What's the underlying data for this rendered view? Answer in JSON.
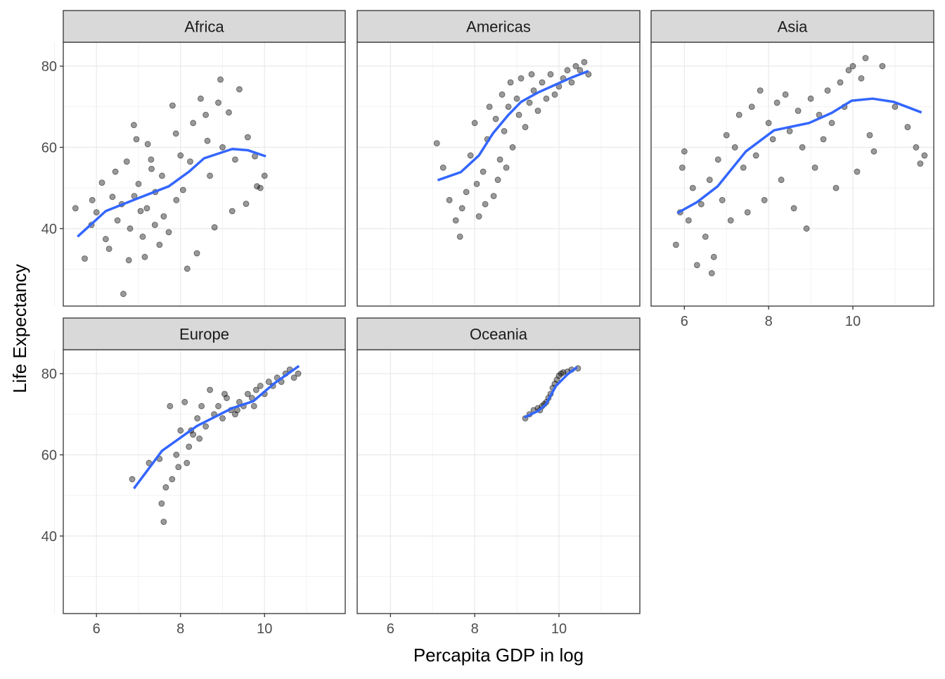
{
  "chart_data": {
    "type": "scatter",
    "xlabel": "Percapita GDP in log",
    "ylabel": "Life Expectancy",
    "xlim": [
      5.21,
      11.92
    ],
    "ylim": [
      20.9,
      85.9
    ],
    "x_ticks": [
      "6",
      "8",
      "10"
    ],
    "y_ticks": [
      "40",
      "60",
      "80"
    ],
    "grid": true,
    "point_color": "#000000",
    "smooth_color": "#3366FF",
    "facets": [
      {
        "name": "Africa",
        "points": [
          [
            5.5,
            45
          ],
          [
            5.72,
            32.6
          ],
          [
            6.22,
            37.4
          ],
          [
            6.64,
            23.9
          ],
          [
            6.77,
            32.2
          ],
          [
            6.89,
            65.5
          ],
          [
            7.22,
            60.8
          ],
          [
            7.56,
            53
          ],
          [
            7.89,
            63.4
          ],
          [
            8.16,
            30.1
          ],
          [
            8.48,
            72
          ],
          [
            8.95,
            76.7
          ],
          [
            9.4,
            74.3
          ],
          [
            9.77,
            57.8
          ],
          [
            10,
            53
          ],
          [
            9.82,
            50.4
          ],
          [
            8.81,
            40.3
          ],
          [
            7.72,
            39.1
          ],
          [
            6.38,
            47.8
          ],
          [
            7.05,
            44.3
          ],
          [
            5.88,
            40.9
          ],
          [
            7.31,
            54.7
          ],
          [
            8.06,
            49.5
          ],
          [
            8.64,
            61.6
          ],
          [
            9.15,
            68.6
          ],
          [
            9.6,
            62.5
          ],
          [
            8.39,
            33.9
          ],
          [
            6.72,
            56.5
          ],
          [
            6.13,
            51.3
          ],
          [
            7.39,
            40.9
          ],
          [
            7.81,
            70.3
          ],
          [
            8.23,
            56.5
          ],
          [
            9.23,
            44.3
          ],
          [
            9.56,
            46.1
          ],
          [
            6.5,
            42
          ],
          [
            6.6,
            46
          ],
          [
            6.9,
            48
          ],
          [
            7.0,
            51
          ],
          [
            7.1,
            38
          ],
          [
            7.2,
            45
          ],
          [
            7.4,
            49
          ],
          [
            7.5,
            36
          ],
          [
            6.3,
            35
          ],
          [
            6.0,
            44
          ],
          [
            5.9,
            47
          ],
          [
            6.8,
            40
          ],
          [
            7.3,
            57
          ],
          [
            7.6,
            43
          ],
          [
            7.9,
            47
          ],
          [
            8.0,
            58
          ],
          [
            8.3,
            66
          ],
          [
            8.6,
            68
          ],
          [
            8.7,
            53
          ],
          [
            9.0,
            60
          ],
          [
            9.3,
            57
          ],
          [
            9.9,
            50
          ],
          [
            6.95,
            62
          ],
          [
            7.15,
            33
          ],
          [
            6.45,
            54
          ],
          [
            8.9,
            71
          ]
        ]
      },
      {
        "name": "Americas",
        "points": [
          [
            7.1,
            61
          ],
          [
            7.25,
            55
          ],
          [
            7.4,
            47
          ],
          [
            7.55,
            42
          ],
          [
            7.65,
            38
          ],
          [
            7.8,
            49
          ],
          [
            7.9,
            58
          ],
          [
            8.0,
            66
          ],
          [
            8.1,
            43
          ],
          [
            8.2,
            54
          ],
          [
            8.3,
            62
          ],
          [
            8.35,
            70
          ],
          [
            8.45,
            48
          ],
          [
            8.5,
            67
          ],
          [
            8.6,
            57
          ],
          [
            8.65,
            73
          ],
          [
            8.7,
            64
          ],
          [
            8.8,
            70
          ],
          [
            8.85,
            76
          ],
          [
            8.9,
            60
          ],
          [
            9.0,
            72
          ],
          [
            9.05,
            68
          ],
          [
            9.1,
            77
          ],
          [
            9.2,
            65
          ],
          [
            9.3,
            71
          ],
          [
            9.35,
            78
          ],
          [
            9.4,
            74
          ],
          [
            9.5,
            69
          ],
          [
            9.6,
            76
          ],
          [
            9.7,
            72
          ],
          [
            9.8,
            78
          ],
          [
            9.9,
            73
          ],
          [
            10.0,
            75
          ],
          [
            10.1,
            77
          ],
          [
            10.2,
            79
          ],
          [
            10.3,
            76
          ],
          [
            10.4,
            80
          ],
          [
            10.5,
            79
          ],
          [
            10.6,
            81
          ],
          [
            10.7,
            78
          ],
          [
            8.05,
            51
          ],
          [
            8.25,
            46
          ],
          [
            8.55,
            52
          ],
          [
            7.7,
            45
          ],
          [
            8.75,
            55
          ]
        ]
      },
      {
        "name": "Asia",
        "points": [
          [
            5.8,
            36
          ],
          [
            5.9,
            44
          ],
          [
            5.95,
            55
          ],
          [
            6.0,
            59
          ],
          [
            6.1,
            42
          ],
          [
            6.2,
            50
          ],
          [
            6.3,
            31
          ],
          [
            6.4,
            46
          ],
          [
            6.5,
            38
          ],
          [
            6.6,
            52
          ],
          [
            6.65,
            29
          ],
          [
            6.7,
            33
          ],
          [
            6.8,
            57
          ],
          [
            6.9,
            47
          ],
          [
            7.0,
            63
          ],
          [
            7.1,
            42
          ],
          [
            7.2,
            60
          ],
          [
            7.3,
            68
          ],
          [
            7.4,
            55
          ],
          [
            7.5,
            44
          ],
          [
            7.6,
            70
          ],
          [
            7.7,
            58
          ],
          [
            7.8,
            74
          ],
          [
            7.9,
            47
          ],
          [
            8.0,
            66
          ],
          [
            8.1,
            62
          ],
          [
            8.2,
            71
          ],
          [
            8.3,
            52
          ],
          [
            8.4,
            73
          ],
          [
            8.5,
            64
          ],
          [
            8.6,
            45
          ],
          [
            8.7,
            69
          ],
          [
            8.8,
            60
          ],
          [
            8.9,
            40
          ],
          [
            9.0,
            72
          ],
          [
            9.1,
            55
          ],
          [
            9.2,
            68
          ],
          [
            9.3,
            62
          ],
          [
            9.4,
            74
          ],
          [
            9.5,
            66
          ],
          [
            9.6,
            50
          ],
          [
            9.7,
            76
          ],
          [
            9.8,
            70
          ],
          [
            9.9,
            79
          ],
          [
            10.0,
            80
          ],
          [
            10.1,
            54
          ],
          [
            10.2,
            77
          ],
          [
            10.3,
            82
          ],
          [
            10.4,
            63
          ],
          [
            10.5,
            59
          ],
          [
            10.7,
            80
          ],
          [
            11.0,
            70
          ],
          [
            11.3,
            65
          ],
          [
            11.5,
            60
          ],
          [
            11.6,
            56
          ],
          [
            11.7,
            58
          ]
        ]
      },
      {
        "name": "Europe",
        "points": [
          [
            6.85,
            54
          ],
          [
            7.25,
            58
          ],
          [
            7.5,
            59
          ],
          [
            7.55,
            48
          ],
          [
            7.6,
            43.5
          ],
          [
            7.65,
            52
          ],
          [
            7.75,
            72
          ],
          [
            7.8,
            54
          ],
          [
            7.9,
            60
          ],
          [
            8.0,
            66
          ],
          [
            8.1,
            73
          ],
          [
            8.2,
            62
          ],
          [
            8.3,
            65
          ],
          [
            8.4,
            69
          ],
          [
            8.5,
            72
          ],
          [
            8.6,
            67
          ],
          [
            8.7,
            76
          ],
          [
            8.8,
            70
          ],
          [
            8.9,
            72
          ],
          [
            9.0,
            69
          ],
          [
            9.1,
            74
          ],
          [
            9.2,
            71
          ],
          [
            9.3,
            70
          ],
          [
            9.4,
            73
          ],
          [
            9.5,
            72
          ],
          [
            9.6,
            75
          ],
          [
            9.7,
            74
          ],
          [
            9.8,
            76
          ],
          [
            9.9,
            77
          ],
          [
            10.0,
            75
          ],
          [
            10.1,
            78
          ],
          [
            10.2,
            77
          ],
          [
            10.3,
            79
          ],
          [
            10.4,
            78
          ],
          [
            10.5,
            80
          ],
          [
            10.6,
            81
          ],
          [
            10.7,
            79
          ],
          [
            10.8,
            80
          ],
          [
            8.25,
            66
          ],
          [
            8.45,
            64
          ],
          [
            8.15,
            58
          ],
          [
            7.95,
            57
          ],
          [
            9.05,
            75
          ],
          [
            9.35,
            71
          ],
          [
            9.75,
            72
          ]
        ]
      },
      {
        "name": "Oceania",
        "points": [
          [
            9.2,
            69
          ],
          [
            9.3,
            70
          ],
          [
            9.4,
            71
          ],
          [
            9.5,
            71.5
          ],
          [
            9.6,
            72
          ],
          [
            9.65,
            72.5
          ],
          [
            9.75,
            74
          ],
          [
            9.8,
            75
          ],
          [
            9.85,
            76.5
          ],
          [
            9.9,
            77.5
          ],
          [
            9.95,
            78.5
          ],
          [
            10.0,
            79.5
          ],
          [
            10.05,
            80
          ],
          [
            10.1,
            80.3
          ],
          [
            10.2,
            80.5
          ],
          [
            10.3,
            81
          ],
          [
            10.45,
            81.3
          ],
          [
            9.7,
            73
          ],
          [
            9.55,
            71
          ]
        ]
      }
    ],
    "smooth": {
      "Africa": [
        [
          5.55,
          38
        ],
        [
          6.22,
          44.3
        ],
        [
          7.0,
          47.5
        ],
        [
          7.72,
          50.4
        ],
        [
          8.2,
          54
        ],
        [
          8.56,
          57.3
        ],
        [
          9.23,
          59.6
        ],
        [
          9.6,
          59.3
        ],
        [
          10.03,
          57.8
        ]
      ],
      "Americas": [
        [
          7.12,
          51.9
        ],
        [
          7.67,
          53.9
        ],
        [
          8.1,
          58
        ],
        [
          8.43,
          63.4
        ],
        [
          8.8,
          68
        ],
        [
          9.1,
          71.2
        ],
        [
          9.5,
          73.5
        ],
        [
          9.93,
          75.5
        ],
        [
          10.3,
          77.2
        ],
        [
          10.7,
          78.8
        ]
      ],
      "Asia": [
        [
          5.83,
          43.8
        ],
        [
          6.3,
          46.5
        ],
        [
          6.79,
          50.4
        ],
        [
          7.46,
          59
        ],
        [
          8.13,
          64.2
        ],
        [
          8.96,
          66
        ],
        [
          9.5,
          68.5
        ],
        [
          9.97,
          71.5
        ],
        [
          10.47,
          72
        ],
        [
          10.97,
          71.2
        ],
        [
          11.63,
          68.6
        ]
      ],
      "Europe": [
        [
          6.89,
          51.7
        ],
        [
          7.56,
          61
        ],
        [
          8.39,
          67.1
        ],
        [
          9.23,
          71.5
        ],
        [
          9.73,
          73.2
        ],
        [
          10.23,
          77.6
        ],
        [
          10.82,
          81.9
        ]
      ],
      "Oceania": [
        [
          9.18,
          69.2
        ],
        [
          9.5,
          70.8
        ],
        [
          9.68,
          72.3
        ],
        [
          9.93,
          77
        ],
        [
          10.2,
          79.8
        ],
        [
          10.43,
          81.6
        ]
      ]
    }
  }
}
